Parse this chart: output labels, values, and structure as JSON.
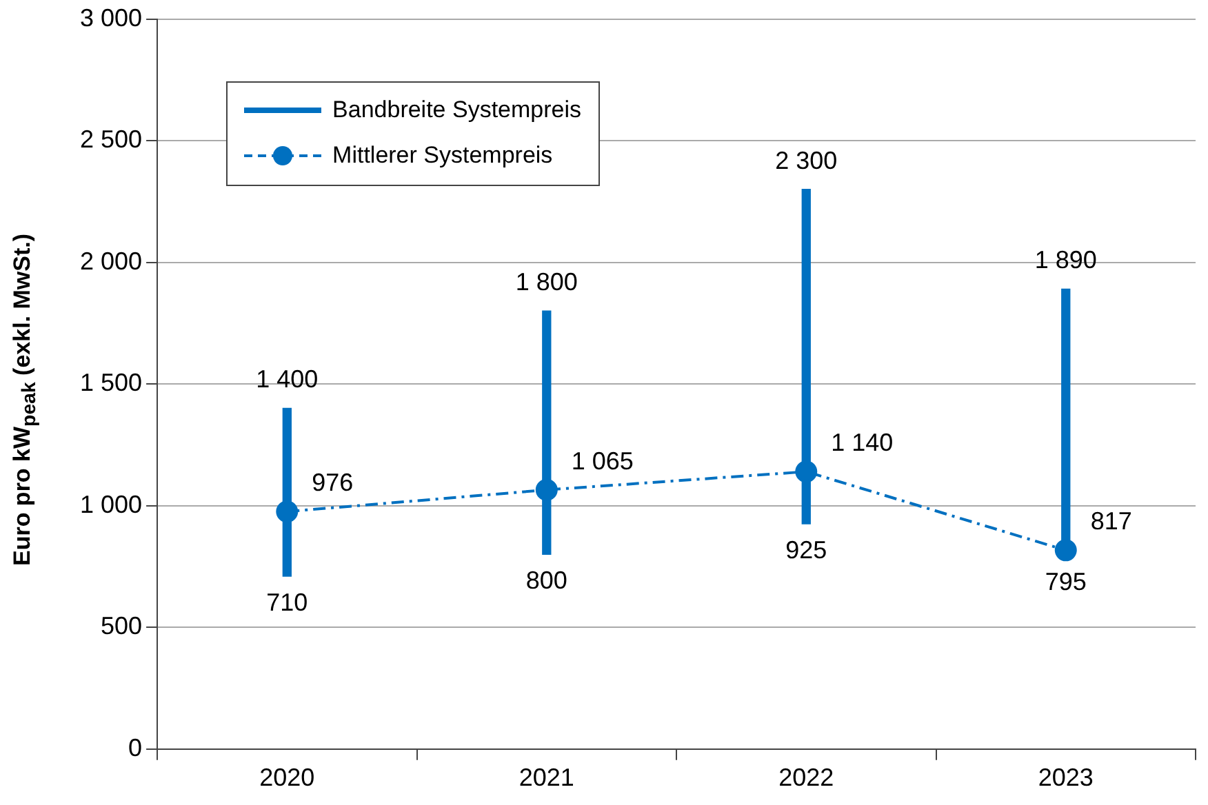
{
  "chart_data": {
    "type": "bar",
    "ylabel": "Euro pro kW$_{peak}$  (exkl. MwSt.)",
    "categories": [
      "2020",
      "2021",
      "2022",
      "2023"
    ],
    "series": [
      {
        "name": "Bandbreite Systempreis",
        "color": "#0070c0",
        "base": [
          710,
          800,
          925,
          795
        ],
        "values": [
          690,
          1000,
          1375,
          1095
        ]
      },
      {
        "name": "Mittlerer Systempreis",
        "type": "line",
        "color": "#0070c0",
        "values": [
          976,
          1065,
          1140,
          817
        ],
        "marker": "circle",
        "line_style": "dashed",
        "value_labels": [
          "976",
          "1 065",
          "1 140",
          "817"
        ]
      }
    ],
    "ylim": [
      0,
      3000
    ],
    "yticks": [
      {
        "value": 0,
        "label": "0"
      },
      {
        "value": 500,
        "label": "500"
      },
      {
        "value": 1000,
        "label": "1 000"
      },
      {
        "value": 1500,
        "label": "1 500"
      },
      {
        "value": 2000,
        "label": "2 000"
      },
      {
        "value": 2500,
        "label": "2 500"
      },
      {
        "value": 3000,
        "label": "3 000"
      }
    ],
    "grid": "y",
    "legend": "top left",
    "annotations": [
      {
        "text": "1 400",
        "x": "2020",
        "y": 1400
      },
      {
        "text": "710",
        "x": "2020",
        "y": 710
      },
      {
        "text": "1 800",
        "x": "2021",
        "y": 1800
      },
      {
        "text": "800",
        "x": "2021",
        "y": 800
      },
      {
        "text": "2 300",
        "x": "2022",
        "y": 2300
      },
      {
        "text": "925",
        "x": "2022",
        "y": 925
      },
      {
        "text": "1 890",
        "x": "2023",
        "y": 1890
      },
      {
        "text": "795",
        "x": "2023",
        "y": 795
      }
    ]
  }
}
